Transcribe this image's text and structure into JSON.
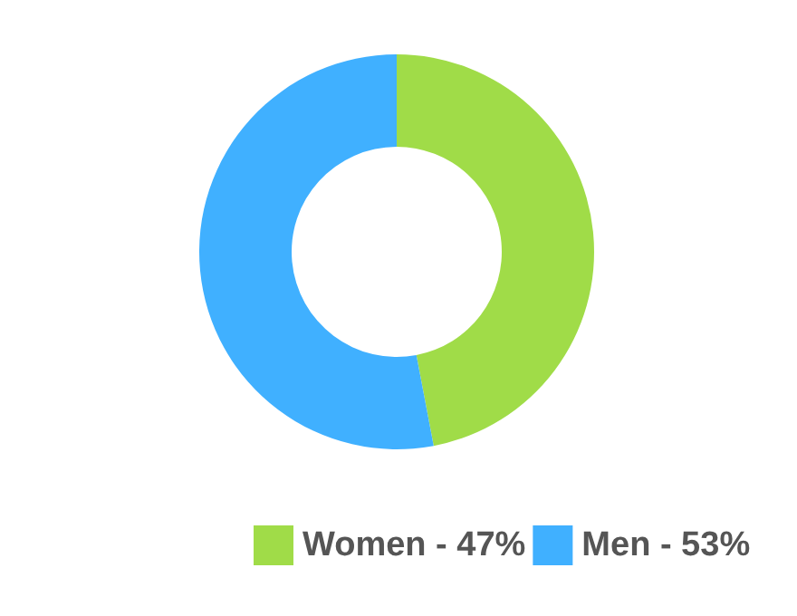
{
  "chart_data": {
    "type": "donut",
    "categories": [
      "Women - 47%",
      "Men - 53%"
    ],
    "values": [
      47,
      53
    ],
    "colors": [
      "#a0dc48",
      "#40b0ff"
    ],
    "legend": "bottom"
  }
}
